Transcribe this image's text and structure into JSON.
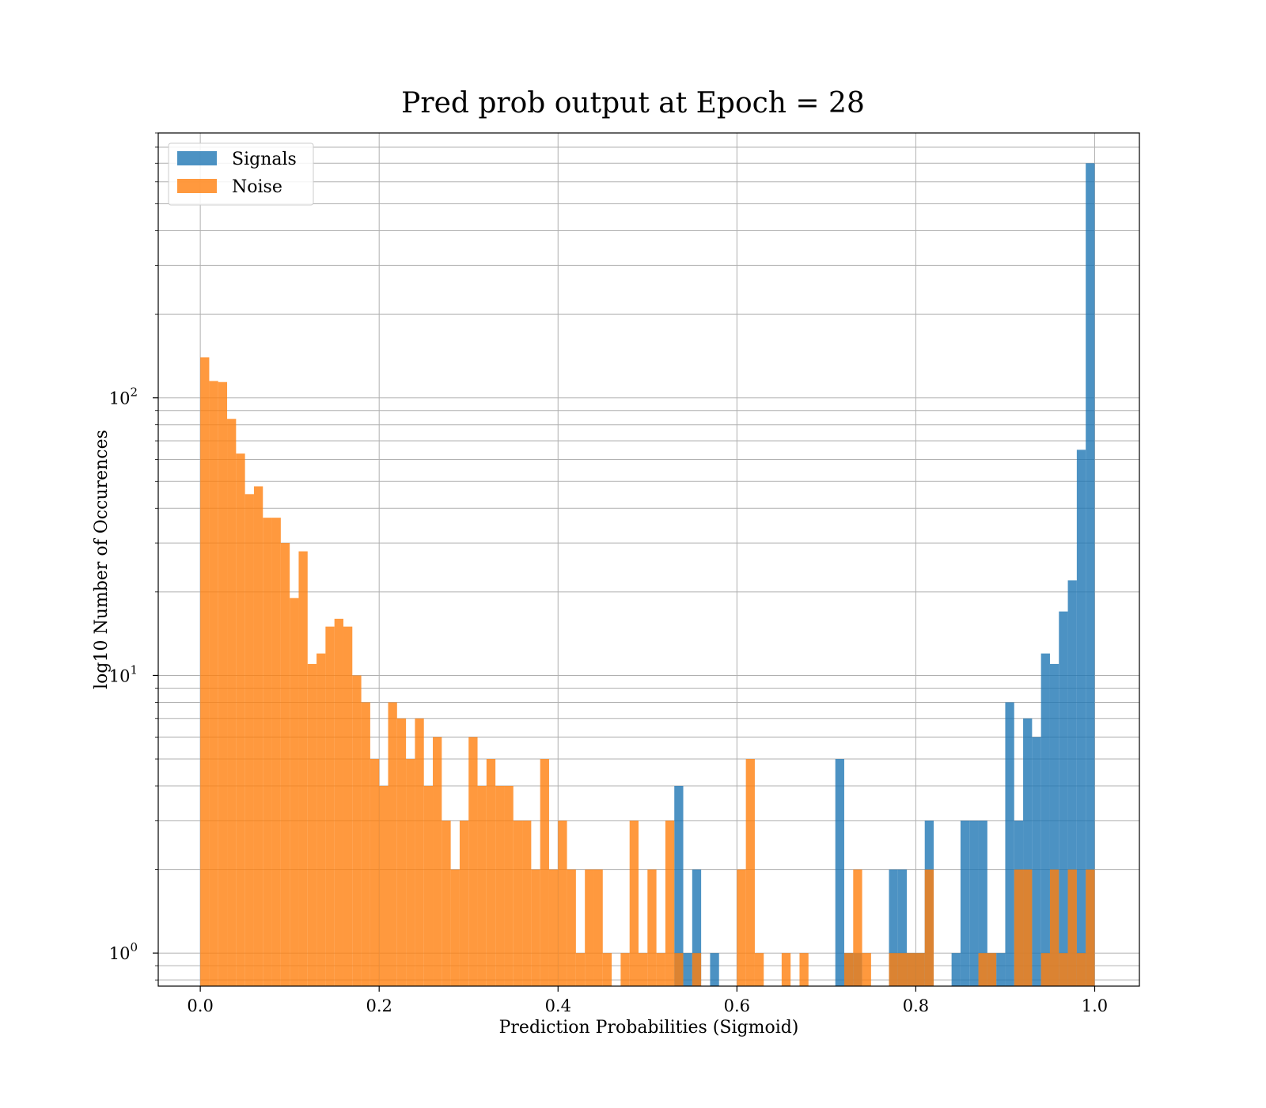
{
  "chart_data": {
    "type": "bar",
    "title": "Pred prob output at Epoch = 28",
    "xlabel": "Prediction Probabilities (Sigmoid)",
    "ylabel": "log10 Number of Occurences",
    "y_scale": "log",
    "xlim": [
      -0.047,
      1.05
    ],
    "ylim": [
      0.76,
      900
    ],
    "x_ticks": [
      0.0,
      0.2,
      0.4,
      0.6,
      0.8,
      1.0
    ],
    "x_tick_labels": [
      "0.0",
      "0.2",
      "0.4",
      "0.6",
      "0.8",
      "1.0"
    ],
    "y_ticks": [
      1,
      10,
      100
    ],
    "y_tick_labels": [
      {
        "base": "10",
        "exp": "0"
      },
      {
        "base": "10",
        "exp": "1"
      },
      {
        "base": "10",
        "exp": "2"
      }
    ],
    "grid": true,
    "legend_position": "upper-left",
    "series": [
      {
        "name": "Signals",
        "color": "#1f77b4",
        "bin_start": 0.0,
        "bin_width": 0.01,
        "values": [
          0,
          0,
          0,
          0,
          0,
          0,
          0,
          0,
          0,
          0,
          0,
          0,
          0,
          0,
          0,
          0,
          0,
          0,
          0,
          0,
          0,
          0,
          0,
          0,
          0,
          0,
          0,
          0,
          0,
          0,
          0,
          0,
          0,
          0,
          0,
          0,
          0,
          0,
          0,
          0,
          0,
          0,
          0,
          0,
          0,
          0,
          0,
          0,
          0,
          0,
          0,
          0,
          0,
          4,
          1,
          2,
          0,
          1,
          0,
          0,
          0,
          0,
          0,
          0,
          0,
          0,
          0,
          0,
          0,
          0,
          0,
          5,
          1,
          1,
          0,
          0,
          0,
          2,
          2,
          1,
          1,
          3,
          0,
          0,
          1,
          3,
          3,
          3,
          1,
          1,
          8,
          3,
          7,
          6,
          12,
          11,
          17,
          22,
          65,
          700
        ]
      },
      {
        "name": "Noise",
        "color": "#ff7f0e",
        "bin_start": 0.0,
        "bin_width": 0.01,
        "values": [
          140,
          115,
          114,
          84,
          63,
          45,
          48,
          37,
          37,
          30,
          19,
          28,
          11,
          12,
          15,
          16,
          15,
          10,
          8,
          5,
          4,
          8,
          7,
          5,
          7,
          4,
          6,
          3,
          2,
          3,
          6,
          4,
          5,
          4,
          4,
          3,
          3,
          2,
          5,
          2,
          3,
          2,
          1,
          2,
          2,
          1,
          0,
          1,
          3,
          1,
          2,
          1,
          3,
          1,
          0,
          1,
          0,
          0,
          0,
          0,
          2,
          5,
          1,
          0,
          0,
          1,
          0,
          1,
          0,
          0,
          0,
          0,
          1,
          2,
          1,
          0,
          0,
          1,
          1,
          1,
          1,
          2,
          0,
          0,
          0,
          0,
          0,
          1,
          1,
          0,
          0,
          2,
          2,
          0,
          1,
          2,
          1,
          2,
          1,
          2
        ]
      }
    ]
  }
}
